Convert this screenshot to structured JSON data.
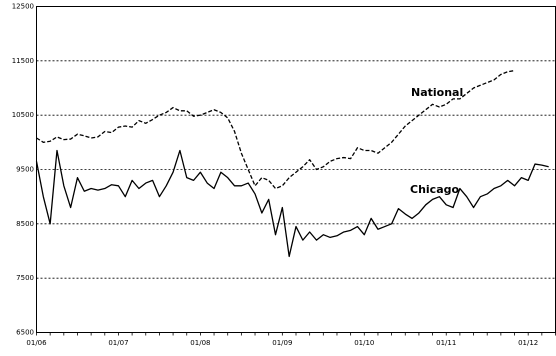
{
  "chart_data": {
    "type": "line",
    "ylim": [
      6500,
      12500
    ],
    "yticks": [
      6500,
      7500,
      8500,
      9500,
      10500,
      11500,
      12500
    ],
    "ytick_labels": [
      "6500",
      "7500",
      "8500",
      "9500",
      "10500",
      "11500",
      "12500"
    ],
    "gridlines": "horizontal-dashed",
    "xlim": [
      0,
      76
    ],
    "xticks": [
      0,
      12,
      24,
      36,
      48,
      60,
      72
    ],
    "xtick_labels": [
      "01/06",
      "01/07",
      "01/08",
      "01/09",
      "01/10",
      "01/11",
      "01/12"
    ],
    "series": [
      {
        "name": "National",
        "style": "dashed",
        "color": "#000000",
        "values": [
          10080,
          10000,
          10020,
          10100,
          10050,
          10060,
          10150,
          10120,
          10080,
          10100,
          10200,
          10180,
          10280,
          10300,
          10280,
          10400,
          10350,
          10420,
          10500,
          10550,
          10640,
          10580,
          10580,
          10480,
          10500,
          10550,
          10600,
          10550,
          10450,
          10200,
          9800,
          9500,
          9200,
          9350,
          9300,
          9150,
          9200,
          9350,
          9450,
          9550,
          9680,
          9500,
          9550,
          9650,
          9700,
          9720,
          9700,
          9900,
          9850,
          9850,
          9800,
          9900,
          10000,
          10150,
          10300,
          10400,
          10500,
          10600,
          10700,
          10650,
          10700,
          10800,
          10800,
          10900,
          11000,
          11050,
          11100,
          11150,
          11250,
          11300,
          11320
        ]
      },
      {
        "name": "Chicago",
        "style": "solid",
        "color": "#000000",
        "values": [
          9650,
          9000,
          8500,
          9850,
          9200,
          8800,
          9350,
          9100,
          9150,
          9120,
          9150,
          9220,
          9200,
          9000,
          9300,
          9150,
          9250,
          9300,
          9000,
          9200,
          9450,
          9850,
          9350,
          9300,
          9450,
          9250,
          9150,
          9450,
          9350,
          9200,
          9200,
          9250,
          9050,
          8700,
          8950,
          8300,
          8800,
          7900,
          8450,
          8200,
          8350,
          8200,
          8300,
          8250,
          8280,
          8350,
          8380,
          8450,
          8300,
          8600,
          8400,
          8450,
          8500,
          8780,
          8680,
          8600,
          8700,
          8850,
          8950,
          9000,
          8850,
          8800,
          9150,
          9000,
          8800,
          9000,
          9050,
          9150,
          9200,
          9300,
          9200,
          9350,
          9300,
          9600,
          9580,
          9550
        ]
      }
    ]
  }
}
